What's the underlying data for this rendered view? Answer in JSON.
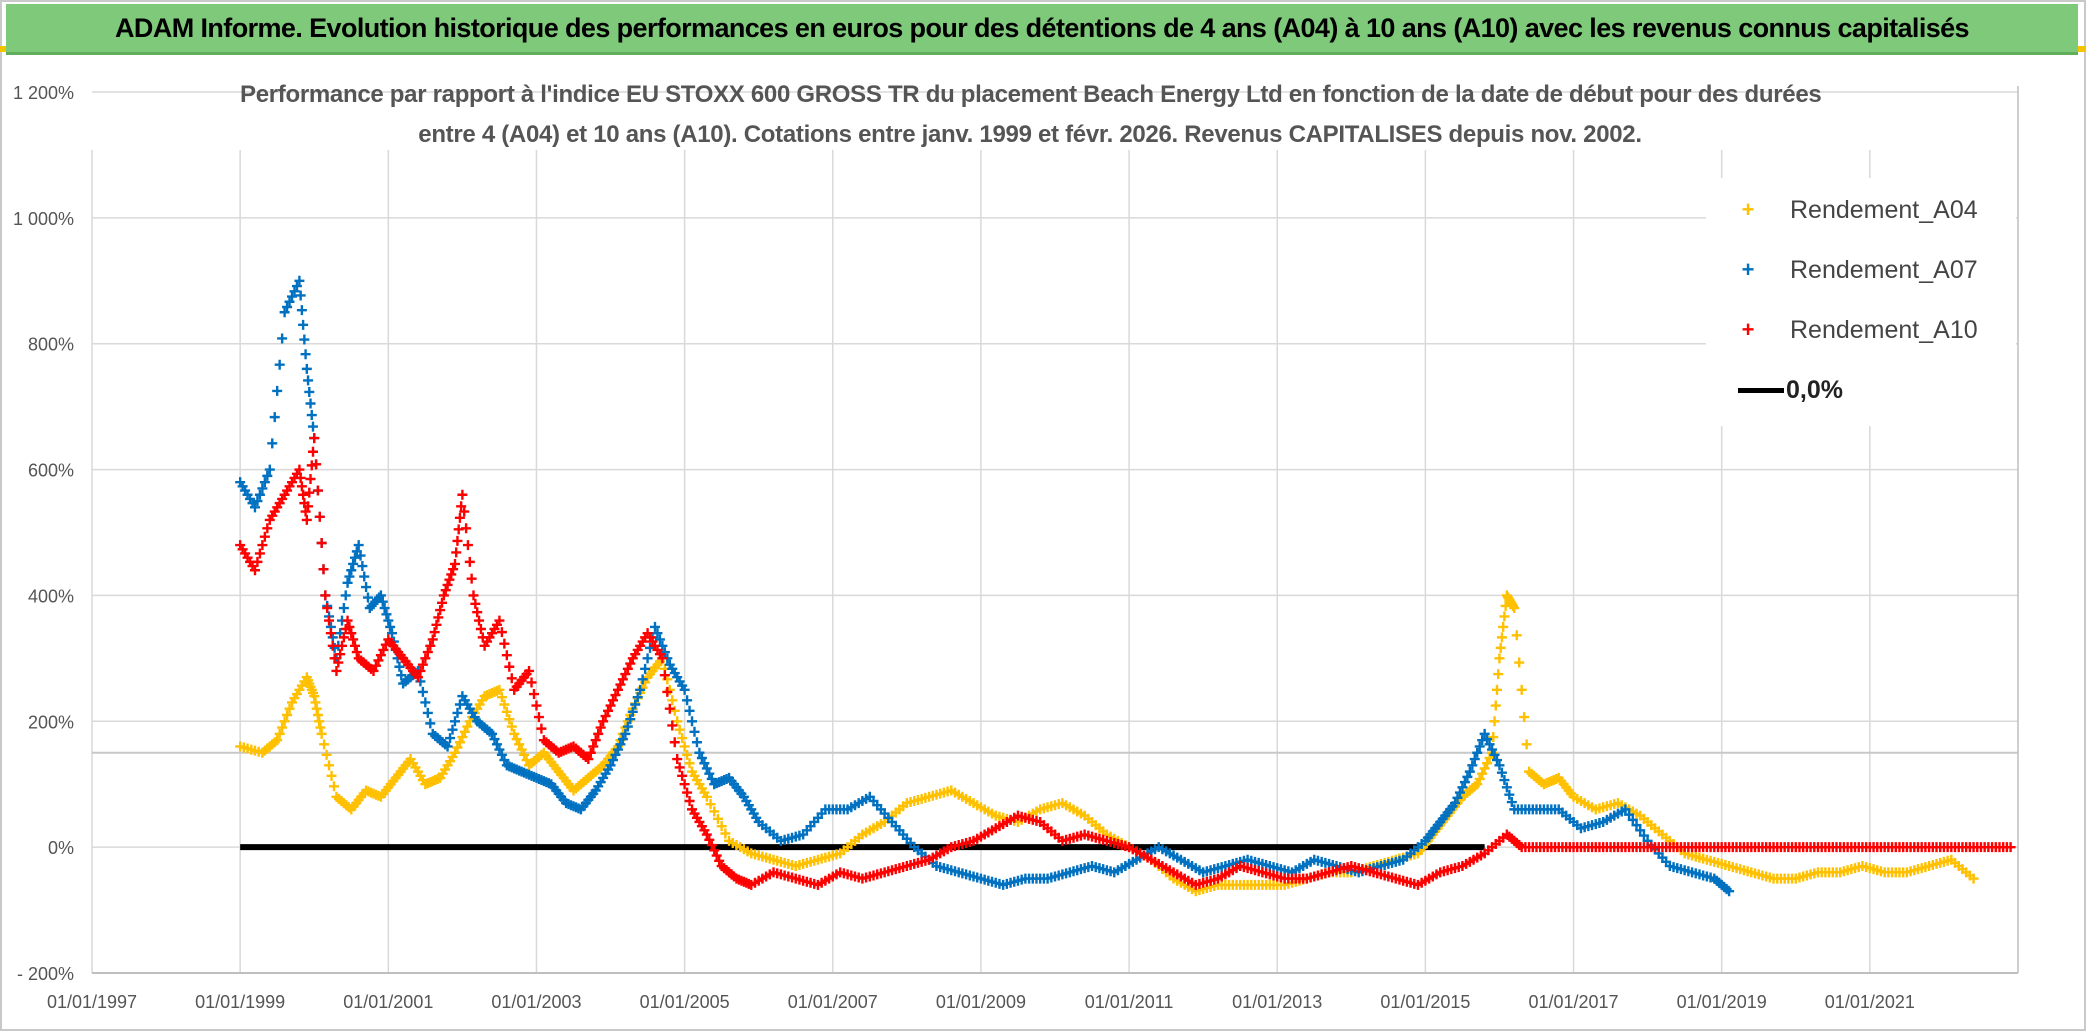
{
  "header": {
    "title": "ADAM Informe. Evolution historique des performances en euros pour des détentions de 4 ans (A04) à 10 ans (A10) avec les revenus connus capitalisés"
  },
  "colors": {
    "header_bg": "#7ec97a",
    "a04": "#ffc000",
    "a07": "#0070c0",
    "a10": "#ff0000",
    "zero_line": "#000000"
  },
  "chart_data": {
    "type": "scatter",
    "title": "Performance par rapport à l'indice EU STOXX 600 GROSS TR  du placement Beach Energy Ltd en fonction de la date de début pour des durées entre 4 (A04) et 10 ans (A10). Cotations entre janv. 1999 et févr. 2026. Revenus CAPITALISES depuis nov. 2002.",
    "title_lines": [
      "Performance par rapport à l'indice EU STOXX 600 GROSS TR  du placement Beach Energy Ltd en fonction de la date de début pour des durées",
      "entre 4 (A04) et 10 ans (A10). Cotations entre janv. 1999 et févr. 2026. Revenus CAPITALISES depuis nov. 2002."
    ],
    "xlabel": "",
    "ylabel": "",
    "x_unit": "year (decimal)",
    "xlim": [
      1997.0,
      2023.0
    ],
    "ylim": [
      -200,
      1200
    ],
    "x_ticks": [
      1997,
      1999,
      2001,
      2003,
      2005,
      2007,
      2009,
      2011,
      2013,
      2015,
      2017,
      2019,
      2021
    ],
    "x_tick_labels": [
      "01/01/1997",
      "01/01/1999",
      "01/01/2001",
      "01/01/2003",
      "01/01/2005",
      "01/01/2007",
      "01/01/2009",
      "01/01/2011",
      "01/01/2013",
      "01/01/2015",
      "01/01/2017",
      "01/01/2019",
      "01/01/2021"
    ],
    "y_ticks": [
      -200,
      0,
      200,
      400,
      600,
      800,
      1000,
      1200
    ],
    "y_tick_labels": [
      "- 200%",
      "0%",
      "200%",
      "400%",
      "600%",
      "800%",
      "1 000%",
      "1 200%"
    ],
    "grid": true,
    "legend_position": "top-right",
    "series": [
      {
        "name": "Rendement_A04",
        "marker": "+",
        "color": "#ffc000",
        "x": [
          1999.0,
          1999.3,
          1999.5,
          1999.7,
          1999.9,
          2000.0,
          2000.1,
          2000.3,
          2000.5,
          2000.7,
          2000.9,
          2001.1,
          2001.3,
          2001.5,
          2001.7,
          2001.9,
          2002.1,
          2002.3,
          2002.5,
          2002.7,
          2002.9,
          2003.1,
          2003.3,
          2003.5,
          2003.7,
          2003.9,
          2004.1,
          2004.3,
          2004.5,
          2004.7,
          2004.9,
          2005.1,
          2005.3,
          2005.6,
          2005.9,
          2006.2,
          2006.5,
          2006.8,
          2007.1,
          2007.4,
          2007.7,
          2008.0,
          2008.3,
          2008.6,
          2008.9,
          2009.2,
          2009.5,
          2009.8,
          2010.1,
          2010.4,
          2010.7,
          2011.0,
          2011.3,
          2011.6,
          2011.9,
          2012.2,
          2012.5,
          2012.8,
          2013.1,
          2013.4,
          2013.7,
          2014.0,
          2014.3,
          2014.6,
          2014.9,
          2015.1,
          2015.3,
          2015.5,
          2015.7,
          2015.9,
          2016.0,
          2016.1,
          2016.2,
          2016.4,
          2016.6,
          2016.8,
          2017.0,
          2017.3,
          2017.6,
          2017.9,
          2018.2,
          2018.5,
          2018.8,
          2019.1,
          2019.4,
          2019.7,
          2020.0,
          2020.3,
          2020.6,
          2020.9,
          2021.2,
          2021.5,
          2021.8,
          2022.1,
          2022.4
        ],
        "y": [
          160,
          150,
          170,
          230,
          270,
          240,
          180,
          80,
          60,
          90,
          80,
          110,
          140,
          100,
          110,
          150,
          200,
          240,
          250,
          180,
          130,
          150,
          120,
          90,
          110,
          130,
          160,
          220,
          270,
          300,
          200,
          120,
          80,
          10,
          -10,
          -20,
          -30,
          -20,
          -10,
          20,
          40,
          70,
          80,
          90,
          70,
          50,
          40,
          60,
          70,
          50,
          20,
          0,
          -20,
          -50,
          -70,
          -60,
          -60,
          -60,
          -60,
          -50,
          -40,
          -40,
          -30,
          -20,
          -10,
          20,
          50,
          80,
          100,
          150,
          300,
          400,
          380,
          120,
          100,
          110,
          80,
          60,
          70,
          50,
          20,
          -10,
          -20,
          -30,
          -40,
          -50,
          -50,
          -40,
          -40,
          -30,
          -40,
          -40,
          -30,
          -20,
          -50
        ]
      },
      {
        "name": "Rendement_A07",
        "marker": "+",
        "color": "#0070c0",
        "x": [
          1999.0,
          1999.2,
          1999.4,
          1999.6,
          1999.8,
          1999.9,
          2000.0,
          2000.15,
          2000.3,
          2000.45,
          2000.6,
          2000.75,
          2000.9,
          2001.05,
          2001.2,
          2001.4,
          2001.6,
          2001.8,
          2002.0,
          2002.2,
          2002.4,
          2002.6,
          2002.8,
          2003.0,
          2003.2,
          2003.4,
          2003.6,
          2003.8,
          2004.0,
          2004.2,
          2004.4,
          2004.6,
          2004.8,
          2005.0,
          2005.2,
          2005.4,
          2005.6,
          2005.8,
          2006.0,
          2006.3,
          2006.6,
          2006.9,
          2007.2,
          2007.5,
          2007.8,
          2008.1,
          2008.4,
          2008.7,
          2009.0,
          2009.3,
          2009.6,
          2009.9,
          2010.2,
          2010.5,
          2010.8,
          2011.1,
          2011.4,
          2011.7,
          2012.0,
          2012.3,
          2012.6,
          2012.9,
          2013.2,
          2013.5,
          2013.8,
          2014.1,
          2014.4,
          2014.7,
          2015.0,
          2015.2,
          2015.4,
          2015.6,
          2015.8,
          2016.0,
          2016.2,
          2016.5,
          2016.8,
          2017.1,
          2017.4,
          2017.7,
          2018.0,
          2018.3,
          2018.6,
          2018.9,
          2019.1
        ],
        "y": [
          580,
          540,
          600,
          850,
          900,
          760,
          650,
          400,
          300,
          420,
          480,
          380,
          400,
          340,
          260,
          280,
          180,
          160,
          240,
          200,
          180,
          130,
          120,
          110,
          100,
          70,
          60,
          90,
          130,
          180,
          250,
          350,
          290,
          250,
          150,
          100,
          110,
          80,
          40,
          10,
          20,
          60,
          60,
          80,
          40,
          0,
          -30,
          -40,
          -50,
          -60,
          -50,
          -50,
          -40,
          -30,
          -40,
          -20,
          0,
          -20,
          -40,
          -30,
          -20,
          -30,
          -40,
          -20,
          -30,
          -40,
          -30,
          -20,
          10,
          40,
          70,
          120,
          180,
          130,
          60,
          60,
          60,
          30,
          40,
          60,
          10,
          -30,
          -40,
          -50,
          -70
        ]
      },
      {
        "name": "Rendement_A10",
        "marker": "+",
        "color": "#ff0000",
        "x": [
          1999.0,
          1999.2,
          1999.4,
          1999.6,
          1999.8,
          1999.9,
          2000.0,
          2000.15,
          2000.3,
          2000.45,
          2000.6,
          2000.8,
          2001.0,
          2001.2,
          2001.4,
          2001.6,
          2001.75,
          2001.9,
          2002.0,
          2002.15,
          2002.3,
          2002.5,
          2002.7,
          2002.9,
          2003.1,
          2003.3,
          2003.5,
          2003.7,
          2003.9,
          2004.1,
          2004.3,
          2004.5,
          2004.7,
          2004.9,
          2005.1,
          2005.3,
          2005.5,
          2005.7,
          2005.9,
          2006.2,
          2006.5,
          2006.8,
          2007.1,
          2007.4,
          2007.7,
          2008.0,
          2008.3,
          2008.6,
          2008.9,
          2009.2,
          2009.5,
          2009.8,
          2010.1,
          2010.4,
          2010.7,
          2011.0,
          2011.3,
          2011.6,
          2011.9,
          2012.2,
          2012.5,
          2012.8,
          2013.1,
          2013.4,
          2013.7,
          2014.0,
          2014.3,
          2014.6,
          2014.9,
          2015.2,
          2015.5,
          2015.8,
          2016.1,
          2016.3,
          2016.6,
          2016.9,
          2017.2,
          2017.5,
          2017.8,
          2018.1,
          2018.4,
          2018.7,
          2019.0,
          2019.3,
          2019.6,
          2019.9,
          2020.2,
          2020.5,
          2020.8,
          2021.1,
          2021.4,
          2021.7,
          2022.0,
          2022.3,
          2022.6,
          2022.9
        ],
        "y": [
          480,
          440,
          520,
          560,
          600,
          520,
          650,
          400,
          280,
          360,
          300,
          280,
          330,
          300,
          270,
          330,
          400,
          450,
          560,
          400,
          320,
          360,
          250,
          280,
          170,
          150,
          160,
          140,
          200,
          250,
          300,
          340,
          300,
          140,
          60,
          20,
          -30,
          -50,
          -60,
          -40,
          -50,
          -60,
          -40,
          -50,
          -40,
          -30,
          -20,
          0,
          10,
          30,
          50,
          40,
          10,
          20,
          10,
          0,
          -20,
          -40,
          -60,
          -50,
          -30,
          -40,
          -50,
          -50,
          -40,
          -30,
          -40,
          -50,
          -60,
          -40,
          -30,
          -10,
          20,
          0,
          0,
          0,
          0,
          0,
          0,
          0,
          0,
          0,
          0,
          0,
          0,
          0,
          0,
          0,
          0,
          0,
          0,
          0,
          0,
          0,
          0,
          0
        ]
      }
    ],
    "reference_line": {
      "name": "0,0%",
      "y": 0,
      "x_from": 1999.0,
      "x_to": 2015.8
    }
  }
}
